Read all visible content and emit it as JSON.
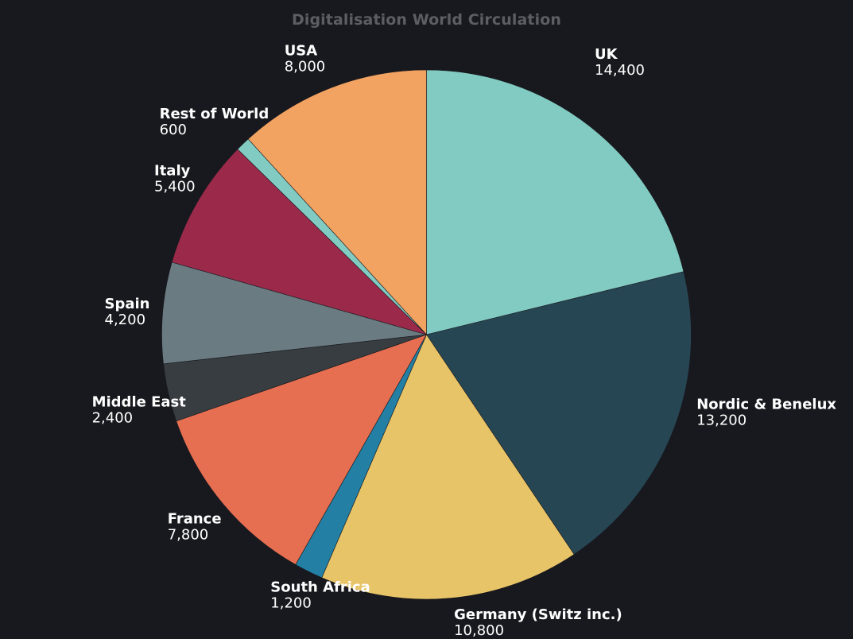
{
  "chart_data": {
    "type": "pie",
    "title": "Digitalisation World Circulation",
    "slices": [
      {
        "label": "UK",
        "value": 14400,
        "value_label": "14,400",
        "color": "#82cbc2"
      },
      {
        "label": "Nordic & Benelux",
        "value": 13200,
        "value_label": "13,200",
        "color": "#274654"
      },
      {
        "label": "Germany (Switz inc.)",
        "value": 10800,
        "value_label": "10,800",
        "color": "#e8c468"
      },
      {
        "label": "South Africa",
        "value": 1200,
        "value_label": "1,200",
        "color": "#237fa3"
      },
      {
        "label": "France",
        "value": 7800,
        "value_label": "7,800",
        "color": "#e66f51"
      },
      {
        "label": "Middle East",
        "value": 2400,
        "value_label": "2,400",
        "color": "#373d40"
      },
      {
        "label": "Spain",
        "value": 4200,
        "value_label": "4,200",
        "color": "#6b7b82"
      },
      {
        "label": "Italy",
        "value": 5400,
        "value_label": "5,400",
        "color": "#9b2a4a"
      },
      {
        "label": "Rest of World",
        "value": 600,
        "value_label": "600",
        "color": "#82cbc2"
      },
      {
        "label": "USA",
        "value": 8000,
        "value_label": "8,000",
        "color": "#f2a261"
      }
    ],
    "start_angle": "top",
    "direction": "clockwise",
    "legend": "none"
  }
}
